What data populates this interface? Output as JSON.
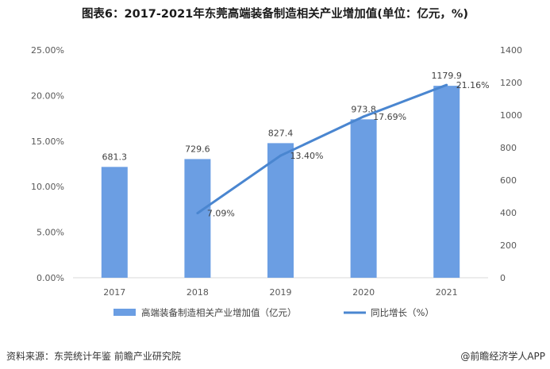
{
  "title": "图表6：2017-2021年东莞高端装备制造相关产业增加值(单位：亿元，%)",
  "source": "资料来源：东莞统计年鉴 前瞻产业研究院",
  "credit": "@前瞻经济学人APP",
  "chart_data": {
    "type": "bar",
    "categories": [
      "2017",
      "2018",
      "2019",
      "2020",
      "2021"
    ],
    "series": [
      {
        "name": "高端装备制造相关产业增加值（亿元）",
        "type": "bar",
        "axis": "right",
        "values": [
          681.3,
          729.6,
          827.4,
          973.8,
          1179.9
        ],
        "labels": [
          "681.3",
          "729.6",
          "827.4",
          "973.8",
          "1179.9"
        ],
        "color": "#6b9ee3"
      },
      {
        "name": "同比增长（%）",
        "type": "line",
        "axis": "left",
        "values": [
          null,
          7.09,
          13.4,
          17.69,
          21.16
        ],
        "labels": [
          "",
          "7.09%",
          "13.40%",
          "17.69%",
          "21.16%"
        ],
        "color": "#4a86d0"
      }
    ],
    "y_left": {
      "ticks": [
        "0.00%",
        "5.00%",
        "10.00%",
        "15.00%",
        "20.00%",
        "25.00%"
      ],
      "range": [
        0,
        25
      ]
    },
    "y_right": {
      "ticks": [
        "0",
        "200",
        "400",
        "600",
        "800",
        "1000",
        "1200",
        "1400"
      ],
      "range": [
        0,
        1400
      ]
    },
    "grid": false,
    "legend_position": "bottom"
  }
}
